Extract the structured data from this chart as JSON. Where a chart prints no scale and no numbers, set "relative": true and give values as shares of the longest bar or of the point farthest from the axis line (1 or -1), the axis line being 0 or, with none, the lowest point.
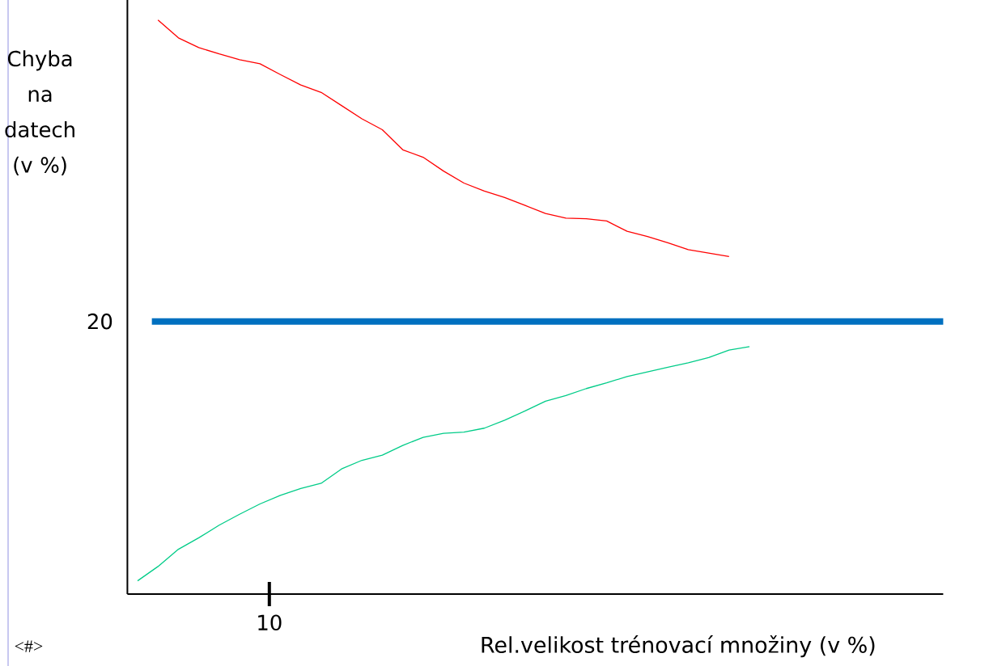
{
  "chart_data": {
    "type": "line",
    "relative": true,
    "xlabel": "Rel.velikost trénovací množiny (v %)",
    "ylabel": "Chyba na datech (v %)",
    "categories": [
      null,
      null,
      null,
      null,
      null,
      null,
      null,
      null,
      null,
      null,
      null,
      null,
      null,
      null,
      null,
      null,
      null,
      null,
      null,
      null,
      null,
      null,
      null,
      null,
      null,
      null,
      null,
      null,
      null,
      null,
      null,
      null,
      null,
      null,
      null,
      null,
      null,
      null,
      null,
      null
    ],
    "ref_lines": [
      {
        "axis": "y",
        "value": 0.475,
        "color": "#0070c0"
      }
    ],
    "annotations": [
      "10",
      "20",
      "<#>"
    ],
    "series": [
      {
        "color": "#ff0000",
        "values": [
          null,
          1.0,
          0.969,
          0.952,
          0.941,
          0.931,
          0.924,
          0.905,
          0.887,
          0.874,
          0.851,
          0.828,
          0.809,
          0.774,
          0.761,
          0.737,
          0.716,
          0.702,
          0.691,
          0.677,
          0.663,
          0.655,
          0.654,
          0.65,
          0.632,
          0.623,
          0.612,
          0.6,
          0.594,
          0.588,
          null,
          null,
          null,
          null,
          null,
          null,
          null,
          null,
          null,
          null
        ]
      },
      {
        "color": "#00cc88",
        "values": [
          0.023,
          0.048,
          0.078,
          0.098,
          0.12,
          0.139,
          0.157,
          0.172,
          0.184,
          0.193,
          0.218,
          0.233,
          0.242,
          0.259,
          0.273,
          0.28,
          0.282,
          0.289,
          0.303,
          0.319,
          0.336,
          0.346,
          0.358,
          0.368,
          0.379,
          0.387,
          0.395,
          0.403,
          0.412,
          0.425,
          0.431,
          null,
          null,
          null,
          null,
          null,
          null,
          null,
          null,
          null
        ]
      }
    ]
  }
}
